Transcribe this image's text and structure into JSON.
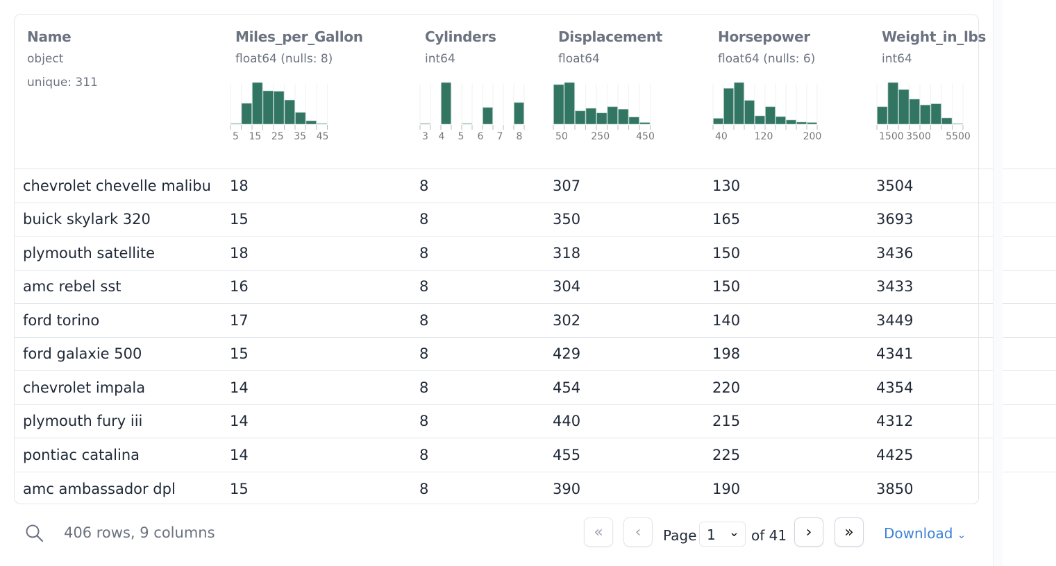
{
  "columns": [
    {
      "name": "Name",
      "dtype": "object",
      "summary": "unique: 311"
    },
    {
      "name": "Miles_per_Gallon",
      "dtype": "float64  (nulls: 8)",
      "hist": [
        0.02,
        0.5,
        1.0,
        0.8,
        0.79,
        0.58,
        0.28,
        0.08,
        0.02
      ],
      "ticks": [
        "5",
        "15",
        "25",
        "35",
        "45"
      ]
    },
    {
      "name": "Cylinders",
      "dtype": "int64",
      "hist": [
        0.02,
        0,
        1.0,
        0,
        0.02,
        0,
        0.4,
        0,
        0,
        0.52
      ],
      "ticks": [
        "3",
        "4",
        "5",
        "6",
        "7",
        "8"
      ]
    },
    {
      "name": "Displacement",
      "dtype": "float64",
      "hist": [
        0.95,
        1.0,
        0.32,
        0.38,
        0.27,
        0.42,
        0.36,
        0.17,
        0.04
      ],
      "ticks": [
        "50",
        "250",
        "450"
      ]
    },
    {
      "name": "Horsepower",
      "dtype": "float64  (nulls: 6)",
      "hist": [
        0.14,
        0.86,
        1.0,
        0.57,
        0.2,
        0.42,
        0.18,
        0.1,
        0.05,
        0.04
      ],
      "ticks": [
        "40",
        "120",
        "200"
      ]
    },
    {
      "name": "Weight_in_lbs",
      "dtype": "int64",
      "hist": [
        0.42,
        1.0,
        0.83,
        0.6,
        0.46,
        0.49,
        0.15,
        0.01
      ],
      "ticks": [
        "1500",
        "3500",
        "5500"
      ]
    }
  ],
  "rows": [
    [
      "chevrolet chevelle malibu",
      "18",
      "8",
      "307",
      "130",
      "3504"
    ],
    [
      "buick skylark 320",
      "15",
      "8",
      "350",
      "165",
      "3693"
    ],
    [
      "plymouth satellite",
      "18",
      "8",
      "318",
      "150",
      "3436"
    ],
    [
      "amc rebel sst",
      "16",
      "8",
      "304",
      "150",
      "3433"
    ],
    [
      "ford torino",
      "17",
      "8",
      "302",
      "140",
      "3449"
    ],
    [
      "ford galaxie 500",
      "15",
      "8",
      "429",
      "198",
      "4341"
    ],
    [
      "chevrolet impala",
      "14",
      "8",
      "454",
      "220",
      "4354"
    ],
    [
      "plymouth fury iii",
      "14",
      "8",
      "440",
      "215",
      "4312"
    ],
    [
      "pontiac catalina",
      "14",
      "8",
      "455",
      "225",
      "4425"
    ],
    [
      "amc ambassador dpl",
      "15",
      "8",
      "390",
      "190",
      "3850"
    ]
  ],
  "footer": {
    "summary": "406 rows, 9 columns",
    "page_label": "Page",
    "page": "1",
    "of_label": "of 41",
    "download": "Download",
    "first": "«",
    "prev": "‹",
    "next": "›",
    "last": "»"
  },
  "colors": {
    "bar": "#337563",
    "accent": "#3b82d6"
  }
}
